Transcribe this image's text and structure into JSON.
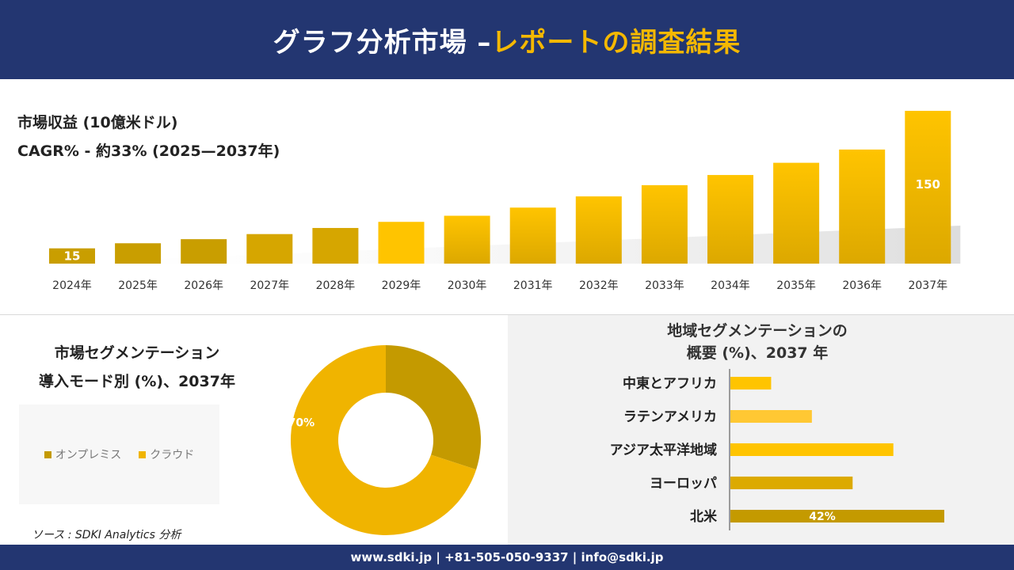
{
  "header": {
    "title_main": "グラフ分析市場 –",
    "title_accent": "レポートの調査結果"
  },
  "revenue": {
    "label": "市場収益 (10億米ドル)",
    "cagr": "CAGR% - 約33% (2025—2037年)"
  },
  "segment": {
    "title_line1": "市場セグメンテーション",
    "title_line2": "導入モード別 (%)、2037年"
  },
  "region": {
    "title_line1": "地域セグメンテーションの",
    "title_line2": "概要 (%)、2037 年"
  },
  "source": "ソース : SDKI Analytics 分析",
  "footer": {
    "contact": "www.sdki.jp | +81-505-050-9337 | info@sdki.jp"
  },
  "colors": {
    "header_bg": "#233671",
    "accent": "#f5b800",
    "bar_dark": "#c49a00",
    "bar_main": "#f2bd00"
  },
  "chart_data": [
    {
      "type": "bar",
      "categories": [
        "2024年",
        "2025年",
        "2026年",
        "2027年",
        "2028年",
        "2029年",
        "2030年",
        "2031年",
        "2032年",
        "2033年",
        "2034年",
        "2035年",
        "2036年",
        "2037年"
      ],
      "values": [
        15,
        20,
        24,
        29,
        35,
        41,
        47,
        55,
        66,
        77,
        87,
        99,
        112,
        150
      ],
      "data_labels": {
        "2024年": "15",
        "2037年": "150"
      }
    },
    {
      "type": "pie",
      "categories": [
        "オンプレミス",
        "クラウド"
      ],
      "values": [
        30,
        70
      ],
      "data_labels": {
        "クラウド": "70%"
      },
      "legend": "left",
      "colors": [
        "#c49a00",
        "#f0b400"
      ]
    },
    {
      "type": "bar",
      "orientation": "horizontal",
      "categories": [
        "中東とアフリカ",
        "ラテンアメリカ",
        "アジア太平洋地域",
        "ヨーロッパ",
        "北米"
      ],
      "values": [
        8,
        16,
        32,
        24,
        42
      ],
      "data_labels": {
        "北米": "42%"
      }
    }
  ]
}
